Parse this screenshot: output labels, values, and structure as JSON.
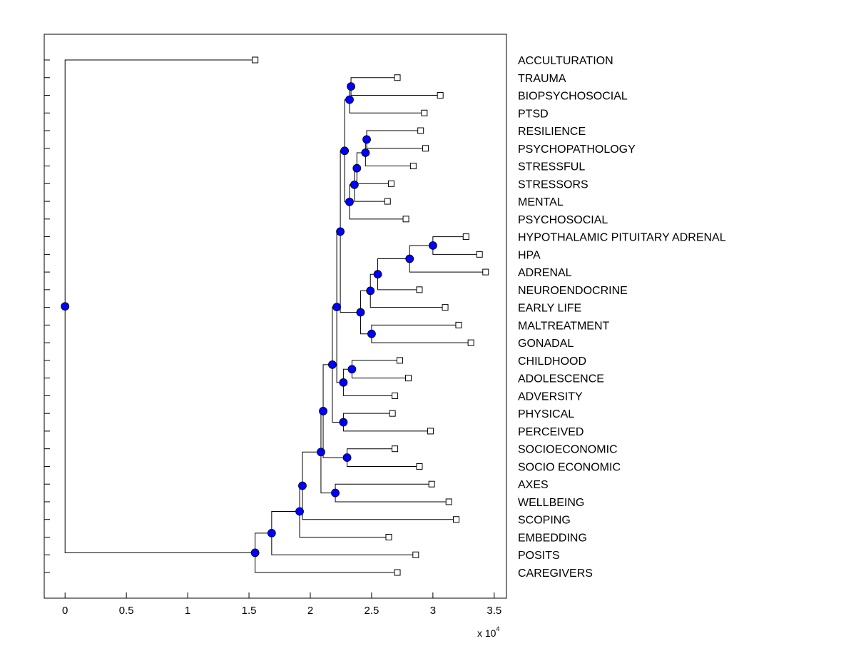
{
  "chart_data": {
    "type": "dendrogram",
    "title": "",
    "xlabel": "",
    "ylabel": "",
    "x_multiplier_label": "x 10",
    "x_multiplier_exponent": "4",
    "xlim": [
      -0.17,
      3.6
    ],
    "xticks": [
      0,
      0.5,
      1,
      1.5,
      2,
      2.5,
      3,
      3.5
    ],
    "xtick_labels": [
      "0",
      "0.5",
      "1",
      "1.5",
      "2",
      "2.5",
      "3",
      "3.5"
    ],
    "colors": {
      "internal_node": "#0000ff",
      "leaf_marker": "#ffffff",
      "line": "#000000"
    },
    "tree": {
      "height": 0,
      "children": [
        {
          "label": "ACCULTURATION",
          "height": 1.55
        },
        {
          "height": 1.55,
          "children": [
            {
              "height": 1.685,
              "children": [
                {
                  "height": 1.913,
                  "children": [
                    {
                      "height": 1.936,
                      "children": [
                        {
                          "height": 2.087,
                          "children": [
                            {
                              "height": 2.105,
                              "children": [
                                {
                                  "height": 2.18,
                                  "children": [
                                    {
                                      "height": 2.216,
                                      "children": [
                                        {
                                          "height": 2.245,
                                          "children": [
                                            {
                                              "height": 2.28,
                                              "children": [
                                                {
                                                  "height": 2.32,
                                                  "children": [
                                                    {
                                                      "height": 2.332,
                                                      "children": [
                                                        {
                                                          "label": "TRAUMA",
                                                          "height": 2.71
                                                        },
                                                        {
                                                          "label": "BIOPSYCHOSOCIAL",
                                                          "height": 3.06
                                                        }
                                                      ]
                                                    },
                                                    {
                                                      "label": "PTSD",
                                                      "height": 2.93
                                                    }
                                                  ]
                                                },
                                                {
                                                  "height": 2.32,
                                                  "children": [
                                                    {
                                                      "height": 2.36,
                                                      "children": [
                                                        {
                                                          "height": 2.38,
                                                          "children": [
                                                            {
                                                              "height": 2.45,
                                                              "children": [
                                                                {
                                                                  "height": 2.46,
                                                                  "children": [
                                                                    {
                                                                      "label": "RESILIENCE",
                                                                      "height": 2.9
                                                                    },
                                                                    {
                                                                      "label": "PSYCHOPATHOLOGY",
                                                                      "height": 2.94
                                                                    }
                                                                  ]
                                                                },
                                                                {
                                                                  "label": "STRESSFUL",
                                                                  "height": 2.84
                                                                }
                                                              ]
                                                            },
                                                            {
                                                              "label": "STRESSORS",
                                                              "height": 2.66
                                                            }
                                                          ]
                                                        },
                                                        {
                                                          "label": "MENTAL",
                                                          "height": 2.63
                                                        }
                                                      ]
                                                    },
                                                    {
                                                      "label": "PSYCHOSOCIAL",
                                                      "height": 2.78
                                                    }
                                                  ]
                                                }
                                              ]
                                            },
                                            {
                                              "height": 2.41,
                                              "children": [
                                                {
                                                  "height": 2.49,
                                                  "children": [
                                                    {
                                                      "height": 2.55,
                                                      "children": [
                                                        {
                                                          "height": 2.81,
                                                          "children": [
                                                            {
                                                              "height": 3.0,
                                                              "children": [
                                                                {
                                                                  "label": "HYPOTHALAMIC PITUITARY ADRENAL",
                                                                  "height": 3.27
                                                                },
                                                                {
                                                                  "label": "HPA",
                                                                  "height": 3.38
                                                                }
                                                              ]
                                                            },
                                                            {
                                                              "label": "ADRENAL",
                                                              "height": 3.43
                                                            }
                                                          ]
                                                        },
                                                        {
                                                          "label": "NEUROENDOCRINE",
                                                          "height": 2.89
                                                        }
                                                      ]
                                                    },
                                                    {
                                                      "label": "EARLY LIFE",
                                                      "height": 3.1
                                                    }
                                                  ]
                                                },
                                                {
                                                  "height": 2.5,
                                                  "children": [
                                                    {
                                                      "label": "MALTREATMENT",
                                                      "height": 3.21
                                                    },
                                                    {
                                                      "label": "GONADAL",
                                                      "height": 3.31
                                                    }
                                                  ]
                                                }
                                              ]
                                            }
                                          ]
                                        },
                                        {
                                          "height": 2.27,
                                          "children": [
                                            {
                                              "height": 2.34,
                                              "children": [
                                                {
                                                  "label": "CHILDHOOD",
                                                  "height": 2.73
                                                },
                                                {
                                                  "label": "ADOLESCENCE",
                                                  "height": 2.8
                                                }
                                              ]
                                            },
                                            {
                                              "label": "ADVERSITY",
                                              "height": 2.69
                                            }
                                          ]
                                        }
                                      ]
                                    },
                                    {
                                      "height": 2.27,
                                      "children": [
                                        {
                                          "label": "PHYSICAL",
                                          "height": 2.67
                                        },
                                        {
                                          "label": "PERCEIVED",
                                          "height": 2.98
                                        }
                                      ]
                                    }
                                  ]
                                },
                                {
                                  "height": 2.3,
                                  "children": [
                                    {
                                      "label": "SOCIOECONOMIC",
                                      "height": 2.69
                                    },
                                    {
                                      "label": "SOCIO ECONOMIC",
                                      "height": 2.89
                                    }
                                  ]
                                }
                              ]
                            },
                            {
                              "height": 2.204,
                              "children": [
                                {
                                  "label": "AXES",
                                  "height": 2.99
                                },
                                {
                                  "label": "WELLBEING",
                                  "height": 3.13
                                }
                              ]
                            }
                          ]
                        },
                        {
                          "label": "SCOPING",
                          "height": 3.19
                        }
                      ]
                    },
                    {
                      "label": "EMBEDDING",
                      "height": 2.64
                    }
                  ]
                },
                {
                  "label": "POSITS",
                  "height": 2.86
                }
              ]
            },
            {
              "label": "CAREGIVERS",
              "height": 2.71
            }
          ]
        }
      ]
    }
  }
}
